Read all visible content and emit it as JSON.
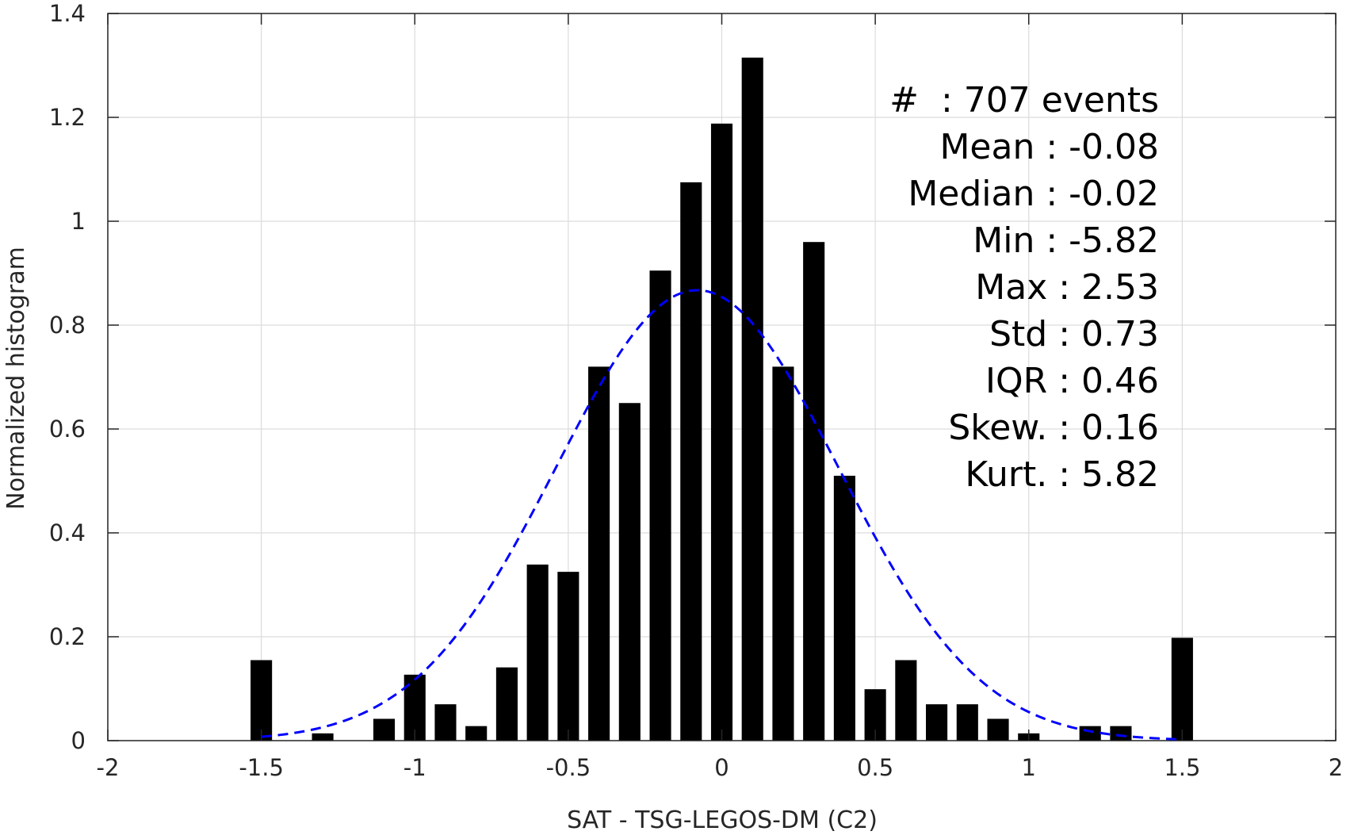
{
  "chart_data": {
    "type": "bar",
    "xlabel": "SAT - TSG-LEGOS-DM (C2)",
    "ylabel": "Normalized histogram",
    "xlim": [
      -2,
      2
    ],
    "ylim": [
      0,
      1.4
    ],
    "xticks": [
      "-2",
      "-1.5",
      "-1",
      "-0.5",
      "0",
      "0.5",
      "1",
      "1.5",
      "2"
    ],
    "yticks": [
      "0",
      "0.2",
      "0.4",
      "0.6",
      "0.8",
      "1",
      "1.2",
      "1.4"
    ],
    "grid": true,
    "bar_width": 0.07,
    "bar_color": "#000000",
    "x": [
      -1.5,
      -1.3,
      -1.1,
      -1.0,
      -0.9,
      -0.8,
      -0.7,
      -0.6,
      -0.5,
      -0.4,
      -0.3,
      -0.2,
      -0.1,
      0.0,
      0.1,
      0.2,
      0.3,
      0.4,
      0.5,
      0.6,
      0.7,
      0.8,
      0.9,
      1.0,
      1.2,
      1.3,
      1.5
    ],
    "values": [
      0.155,
      0.014,
      0.042,
      0.127,
      0.07,
      0.028,
      0.141,
      0.339,
      0.325,
      0.72,
      0.65,
      0.905,
      1.075,
      1.188,
      1.315,
      0.72,
      0.96,
      0.51,
      0.099,
      0.155,
      0.07,
      0.07,
      0.042,
      0.014,
      0.028,
      0.028,
      0.198
    ],
    "fit": {
      "type": "normal",
      "mean": -0.08,
      "std": 0.46,
      "range": [
        -1.5,
        1.5
      ],
      "color": "#0000ff",
      "style": "dashed"
    },
    "annotations": [
      "#  : 707 events",
      "Mean : -0.08",
      "Median : -0.02",
      "Min : -5.82",
      "Max : 2.53",
      "Std : 0.73",
      "IQR : 0.46",
      "Skew. : 0.16",
      "Kurt. : 5.82"
    ]
  }
}
